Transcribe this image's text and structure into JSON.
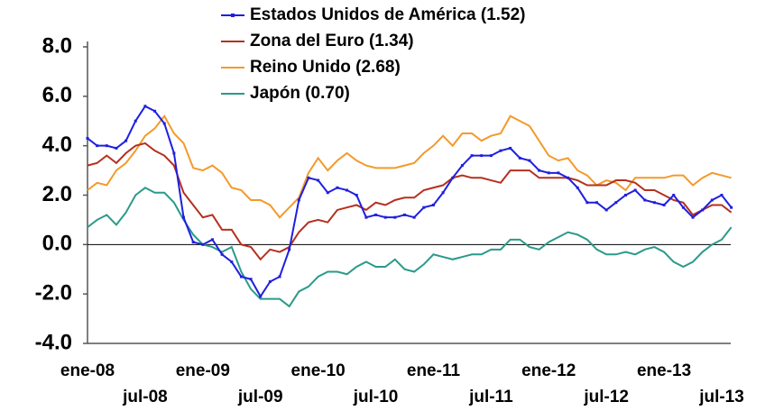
{
  "chart_data": {
    "type": "line",
    "categories": [
      "ene-08",
      null,
      null,
      null,
      null,
      null,
      "jul-08",
      null,
      null,
      null,
      null,
      null,
      "ene-09",
      null,
      null,
      null,
      null,
      null,
      "jul-09",
      null,
      null,
      null,
      null,
      null,
      "ene-10",
      null,
      null,
      null,
      null,
      null,
      "jul-10",
      null,
      null,
      null,
      null,
      null,
      "ene-11",
      null,
      null,
      null,
      null,
      null,
      "jul-11",
      null,
      null,
      null,
      null,
      null,
      "ene-12",
      null,
      null,
      null,
      null,
      null,
      "jul-12",
      null,
      null,
      null,
      null,
      null,
      "ene-13",
      null,
      null,
      null,
      null,
      null,
      "jul-13",
      null
    ],
    "series": [
      {
        "name": "Estados Unidos de América (1.52)",
        "color": "#1f1fe0",
        "markers": true,
        "values": [
          4.3,
          4.0,
          4.0,
          3.9,
          4.2,
          5.0,
          5.6,
          5.4,
          4.9,
          3.7,
          1.1,
          0.1,
          0.0,
          0.2,
          -0.4,
          -0.7,
          -1.3,
          -1.4,
          -2.1,
          -1.5,
          -1.3,
          -0.2,
          1.8,
          2.7,
          2.6,
          2.1,
          2.3,
          2.2,
          2.0,
          1.1,
          1.2,
          1.1,
          1.1,
          1.2,
          1.1,
          1.5,
          1.6,
          2.1,
          2.7,
          3.2,
          3.6,
          3.6,
          3.6,
          3.8,
          3.9,
          3.5,
          3.4,
          3.0,
          2.9,
          2.9,
          2.7,
          2.3,
          1.7,
          1.7,
          1.4,
          1.7,
          2.0,
          2.2,
          1.8,
          1.7,
          1.6,
          2.0,
          1.5,
          1.1,
          1.4,
          1.8,
          2.0,
          1.5
        ]
      },
      {
        "name": "Zona del Euro (1.34)",
        "color": "#b5301f",
        "markers": false,
        "values": [
          3.2,
          3.3,
          3.6,
          3.3,
          3.7,
          4.0,
          4.1,
          3.8,
          3.6,
          3.2,
          2.1,
          1.6,
          1.1,
          1.2,
          0.6,
          0.6,
          0.0,
          -0.1,
          -0.6,
          -0.2,
          -0.3,
          -0.1,
          0.5,
          0.9,
          1.0,
          0.9,
          1.4,
          1.5,
          1.6,
          1.4,
          1.7,
          1.6,
          1.8,
          1.9,
          1.9,
          2.2,
          2.3,
          2.4,
          2.7,
          2.8,
          2.7,
          2.7,
          2.6,
          2.5,
          3.0,
          3.0,
          3.0,
          2.7,
          2.7,
          2.7,
          2.7,
          2.6,
          2.4,
          2.4,
          2.4,
          2.6,
          2.6,
          2.5,
          2.2,
          2.2,
          2.0,
          1.8,
          1.7,
          1.2,
          1.4,
          1.6,
          1.6,
          1.3
        ]
      },
      {
        "name": "Reino Unido (2.68)",
        "color": "#f39a2a",
        "markers": false,
        "values": [
          2.2,
          2.5,
          2.4,
          3.0,
          3.3,
          3.8,
          4.4,
          4.7,
          5.2,
          4.5,
          4.1,
          3.1,
          3.0,
          3.2,
          2.9,
          2.3,
          2.2,
          1.8,
          1.8,
          1.6,
          1.1,
          1.5,
          1.9,
          2.9,
          3.5,
          3.0,
          3.4,
          3.7,
          3.4,
          3.2,
          3.1,
          3.1,
          3.1,
          3.2,
          3.3,
          3.7,
          4.0,
          4.4,
          4.0,
          4.5,
          4.5,
          4.2,
          4.4,
          4.5,
          5.2,
          5.0,
          4.8,
          4.2,
          3.6,
          3.4,
          3.5,
          3.0,
          2.8,
          2.4,
          2.6,
          2.5,
          2.2,
          2.7,
          2.7,
          2.7,
          2.7,
          2.8,
          2.8,
          2.4,
          2.7,
          2.9,
          2.8,
          2.7
        ]
      },
      {
        "name": "Japón (0.70)",
        "color": "#2a9a8a",
        "markers": false,
        "values": [
          0.7,
          1.0,
          1.2,
          0.8,
          1.3,
          2.0,
          2.3,
          2.1,
          2.1,
          1.7,
          1.0,
          0.4,
          0.0,
          -0.1,
          -0.3,
          -0.1,
          -1.1,
          -1.8,
          -2.2,
          -2.2,
          -2.2,
          -2.5,
          -1.9,
          -1.7,
          -1.3,
          -1.1,
          -1.1,
          -1.2,
          -0.9,
          -0.7,
          -0.9,
          -0.9,
          -0.6,
          -1.0,
          -1.1,
          -0.8,
          -0.4,
          -0.5,
          -0.6,
          -0.5,
          -0.4,
          -0.4,
          -0.2,
          -0.2,
          0.2,
          0.2,
          -0.1,
          -0.2,
          0.1,
          0.3,
          0.5,
          0.4,
          0.2,
          -0.2,
          -0.4,
          -0.4,
          -0.3,
          -0.4,
          -0.2,
          -0.1,
          -0.3,
          -0.7,
          -0.9,
          -0.7,
          -0.3,
          0.0,
          0.2,
          0.7
        ]
      }
    ],
    "ylim": [
      -4,
      8
    ],
    "yticks": [
      {
        "value": -4,
        "label": "-4.0"
      },
      {
        "value": -2,
        "label": "-2.0"
      },
      {
        "value": 0,
        "label": "0.0"
      },
      {
        "value": 2,
        "label": "2.0"
      },
      {
        "value": 4,
        "label": "4.0"
      },
      {
        "value": 6,
        "label": "6.0"
      },
      {
        "value": 8,
        "label": "8.0"
      }
    ],
    "zero_line": true,
    "legend": "top"
  }
}
